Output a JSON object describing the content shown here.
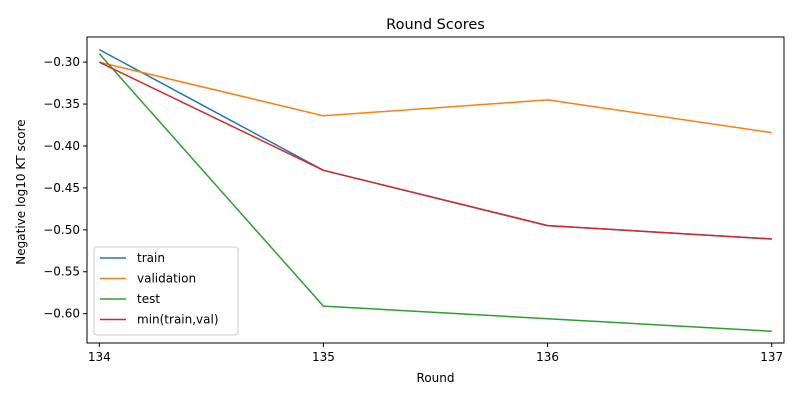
{
  "chart_data": {
    "type": "line",
    "title": "Round Scores",
    "xlabel": "Round",
    "ylabel": "Negative log10 KT score",
    "x": [
      134,
      135,
      136,
      137
    ],
    "xticks": [
      "134",
      "135",
      "136",
      "137"
    ],
    "ylim": [
      -0.635,
      -0.27
    ],
    "yticks": [
      -0.3,
      -0.35,
      -0.4,
      -0.45,
      -0.5,
      -0.55,
      -0.6
    ],
    "ytick_labels": [
      "−0.30",
      "−0.35",
      "−0.40",
      "−0.45",
      "−0.50",
      "−0.55",
      "−0.60"
    ],
    "grid": false,
    "legend_position": "lower-left",
    "series": [
      {
        "name": "train",
        "color": "#1f77b4",
        "values": [
          -0.285,
          -0.429,
          -0.495,
          -0.511
        ]
      },
      {
        "name": "validation",
        "color": "#ff7f0e",
        "values": [
          -0.3,
          -0.364,
          -0.345,
          -0.384
        ]
      },
      {
        "name": "test",
        "color": "#2ca02c",
        "values": [
          -0.29,
          -0.591,
          -0.606,
          -0.621
        ]
      },
      {
        "name": "min(train,val)",
        "color": "#d62728",
        "values": [
          -0.3,
          -0.429,
          -0.495,
          -0.511
        ]
      }
    ]
  }
}
